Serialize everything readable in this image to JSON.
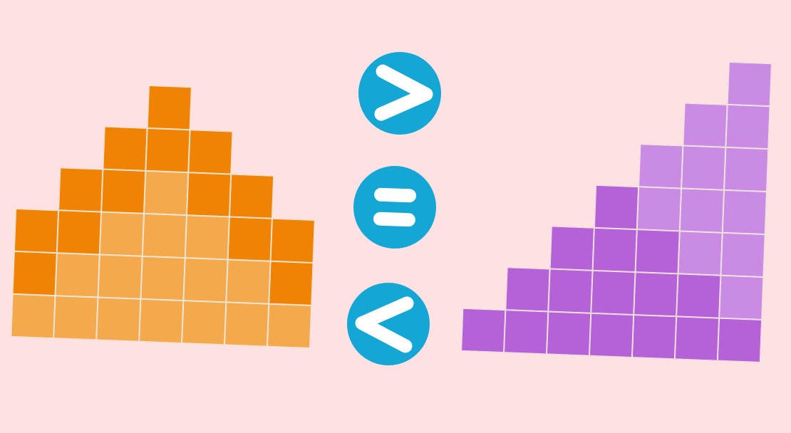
{
  "background_color": "#fde1e3",
  "grid_line_color": "#f0eade",
  "button_color": "#14a7d5",
  "symbol_color": "#ffffff",
  "left_shape": {
    "name": "orange-pyramid",
    "dark_color": "#f08303",
    "light_color": "#f4a94d",
    "columns": 7,
    "rows": [
      "...D...",
      "..DDD..",
      ".DDLDD.",
      "DDLLLDD",
      "DLLLLLD",
      "LLLLLLL"
    ],
    "square_count": 30
  },
  "right_shape": {
    "name": "purple-staircase",
    "dark_color": "#b561d8",
    "light_color": "#c98be4",
    "columns": 7,
    "rows": [
      "......L",
      ".....LL",
      "....LLL",
      "...DLLL",
      "..DDDLL",
      ".DDDDDL",
      "DDDDDDD"
    ],
    "square_count": 28
  },
  "comparison_buttons": [
    {
      "symbol": ">",
      "label": "greater than",
      "icon": "greater-than-icon"
    },
    {
      "symbol": "=",
      "label": "equal to",
      "icon": "equals-icon"
    },
    {
      "symbol": "<",
      "label": "less than",
      "icon": "less-than-icon"
    }
  ]
}
